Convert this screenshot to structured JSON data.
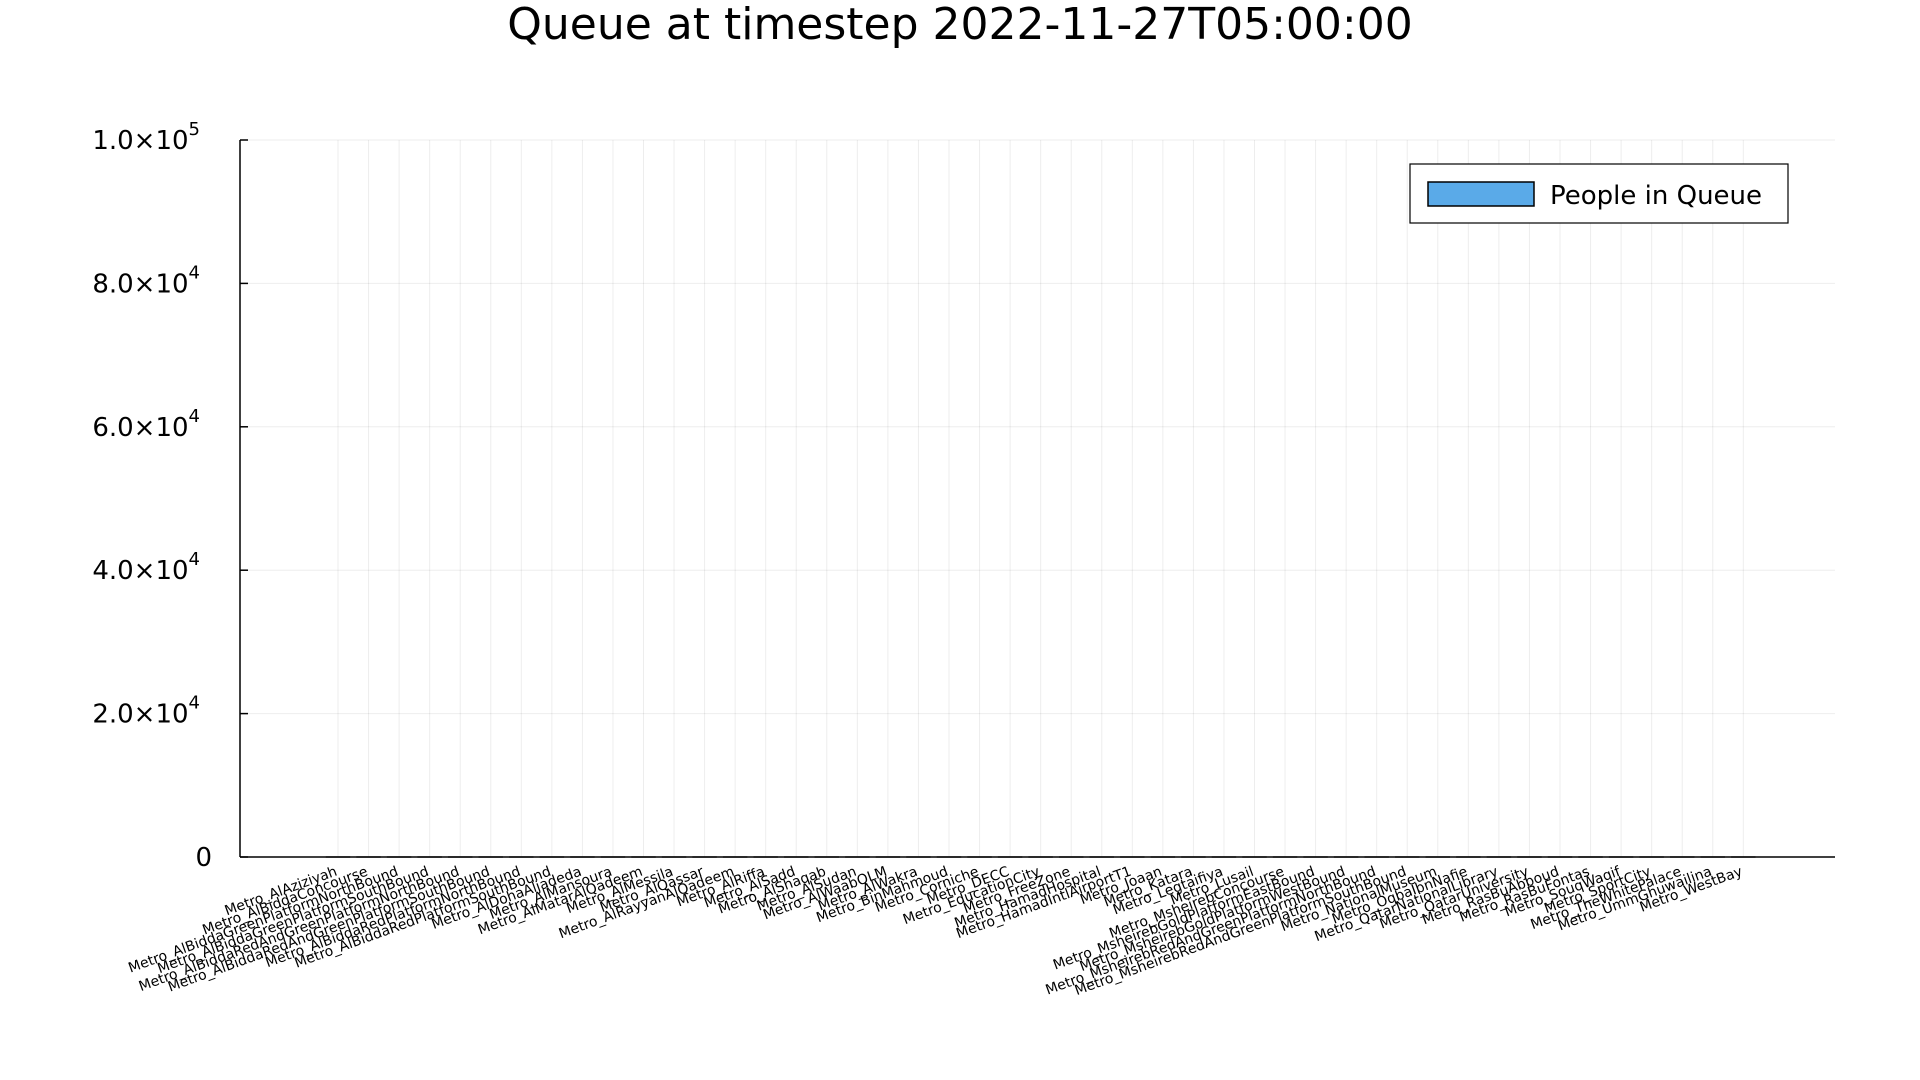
{
  "chart_data": {
    "type": "bar",
    "title": "Queue at timestep 2022-11-27T05:00:00",
    "xlabel": "",
    "ylabel": "",
    "ylim": [
      0,
      100000
    ],
    "yticks": [
      {
        "value": 0,
        "mantissa": "0",
        "exp": ""
      },
      {
        "value": 20000,
        "mantissa": "2.0×10",
        "exp": "4"
      },
      {
        "value": 40000,
        "mantissa": "4.0×10",
        "exp": "4"
      },
      {
        "value": 60000,
        "mantissa": "6.0×10",
        "exp": "4"
      },
      {
        "value": 80000,
        "mantissa": "8.0×10",
        "exp": "4"
      },
      {
        "value": 100000,
        "mantissa": "1.0×10",
        "exp": "5"
      }
    ],
    "grid": true,
    "legend_position": "top-right",
    "series_color": "#5aaae8",
    "categories": [
      "Metro_AlAziziyah",
      "Metro_AlBiddaConcourse",
      "Metro_AlBiddaGreenPlatformNorthBound",
      "Metro_AlBiddaGreenPlatformSouthBound",
      "Metro_AlBiddaRedAndGreenPlatformNorthBound",
      "Metro_AlBiddaRedAndGreenPlatformSouthBound",
      "Metro_AlBiddaRedPlatformNorthBound",
      "Metro_AlBiddaRedPlatformSouthBound",
      "Metro_AlDohaAljadeda",
      "Metro_AlMansoura",
      "Metro_AlMatarAlQadeem",
      "Metro_AlMessila",
      "Metro_AlQassar",
      "Metro_AlRayyanAlQadeem",
      "Metro_AlRiffa",
      "Metro_AlSadd",
      "Metro_AlShaqab",
      "Metro_AlSudan",
      "Metro_AlWaabQLM",
      "Metro_AlWakra",
      "Metro_BinMahmoud",
      "Metro_Corniche",
      "Metro_DECC",
      "Metro_EducationCity",
      "Metro_FreeZone",
      "Metro_HamadHospital",
      "Metro_HamadIntlAirportT1",
      "Metro_Joaan",
      "Metro_Katara",
      "Metro_Legtaifiya",
      "Metro_Lusail",
      "Metro_MsheirebConcourse",
      "Metro_MsheirebGoldPlatformEastBound",
      "Metro_MsheirebGoldPlatformWestBound",
      "Metro_MsheirebRedAndGreenPlatformNorthBound",
      "Metro_MsheirebRedAndGreenPlatformSouthBound",
      "Metro_NationalMuseum",
      "Metro_OqbaIbnNafie",
      "Metro_QatarNationalLibrary",
      "Metro_QatarUniversity",
      "Metro_RasBuAbboud",
      "Metro_RasBuFontas",
      "Metro_SouqWaqif",
      "Metro_SportCity",
      "Metro_TheWhitePalace",
      "Metro_UmmGhuwailina",
      "Metro_WestBay"
    ],
    "series": [
      {
        "name": "People in Queue",
        "values": [
          0,
          0,
          0,
          0,
          0,
          0,
          0,
          0,
          0,
          0,
          0,
          0,
          0,
          0,
          0,
          0,
          0,
          0,
          0,
          0,
          0,
          0,
          0,
          0,
          0,
          0,
          0,
          0,
          0,
          0,
          0,
          0,
          0,
          0,
          0,
          0,
          0,
          0,
          0,
          0,
          0,
          0,
          0,
          0,
          0,
          0,
          0
        ]
      }
    ]
  }
}
